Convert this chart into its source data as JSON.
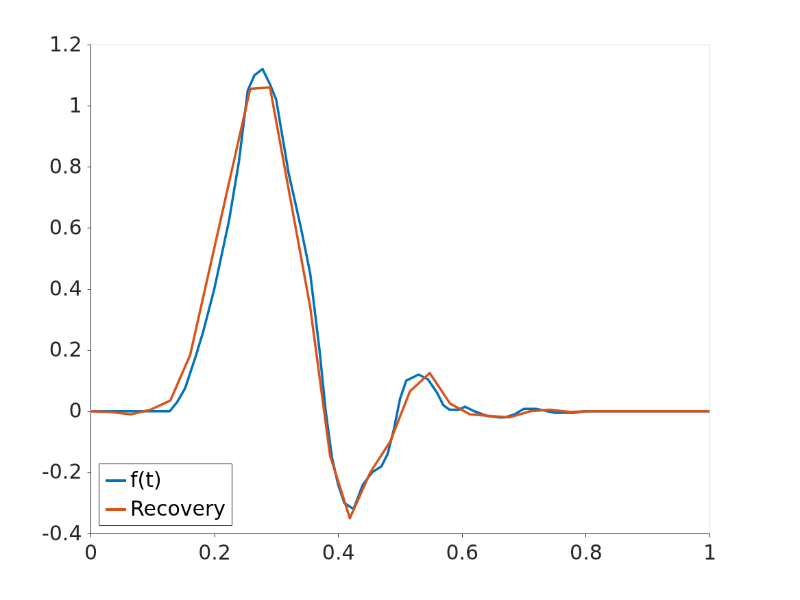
{
  "chart_data": {
    "type": "line",
    "xlim": [
      0,
      1
    ],
    "ylim": [
      -0.4,
      1.2
    ],
    "xticks": [
      0,
      0.2,
      0.4,
      0.6,
      0.8,
      1
    ],
    "yticks": [
      -0.4,
      -0.2,
      0,
      0.2,
      0.4,
      0.6,
      0.8,
      1,
      1.2
    ],
    "grid": false,
    "legend": "bottom left",
    "line_style": "solid",
    "marker": "none",
    "series": [
      {
        "name": "f(t)",
        "color": "#0072bd",
        "x": [
          0,
          0.1,
          0.128,
          0.14,
          0.153,
          0.17,
          0.182,
          0.2,
          0.224,
          0.24,
          0.254,
          0.265,
          0.278,
          0.29,
          0.3,
          0.31,
          0.32,
          0.34,
          0.355,
          0.37,
          0.38,
          0.39,
          0.4,
          0.41,
          0.425,
          0.44,
          0.455,
          0.47,
          0.48,
          0.49,
          0.5,
          0.51,
          0.53,
          0.545,
          0.56,
          0.57,
          0.58,
          0.595,
          0.605,
          0.62,
          0.64,
          0.66,
          0.67,
          0.685,
          0.7,
          0.72,
          0.75,
          0.78,
          0.8,
          1
        ],
        "values": [
          0,
          0,
          0,
          0.03,
          0.076,
          0.18,
          0.26,
          0.4,
          0.626,
          0.82,
          1.05,
          1.1,
          1.12,
          1.07,
          1.02,
          0.9,
          0.78,
          0.6,
          0.45,
          0.2,
          0.0,
          -0.15,
          -0.24,
          -0.3,
          -0.32,
          -0.24,
          -0.2,
          -0.18,
          -0.14,
          -0.06,
          0.04,
          0.1,
          0.12,
          0.105,
          0.06,
          0.02,
          0.005,
          0.005,
          0.015,
          0.0,
          -0.015,
          -0.02,
          -0.02,
          -0.01,
          0.008,
          0.008,
          -0.005,
          -0.005,
          0,
          0
        ]
      },
      {
        "name": "Recovery",
        "color": "#d95319",
        "x": [
          0,
          0.032,
          0.065,
          0.097,
          0.129,
          0.161,
          0.258,
          0.29,
          0.355,
          0.387,
          0.419,
          0.452,
          0.484,
          0.516,
          0.548,
          0.581,
          0.613,
          0.645,
          0.677,
          0.71,
          0.742,
          0.774,
          0.806,
          1
        ],
        "values": [
          0,
          -0.002,
          -0.01,
          0.005,
          0.035,
          0.184,
          1.055,
          1.06,
          0.34,
          -0.145,
          -0.35,
          -0.2,
          -0.1,
          0.065,
          0.125,
          0.025,
          -0.01,
          -0.015,
          -0.02,
          0.0,
          0.005,
          -0.002,
          0,
          0
        ]
      }
    ]
  }
}
